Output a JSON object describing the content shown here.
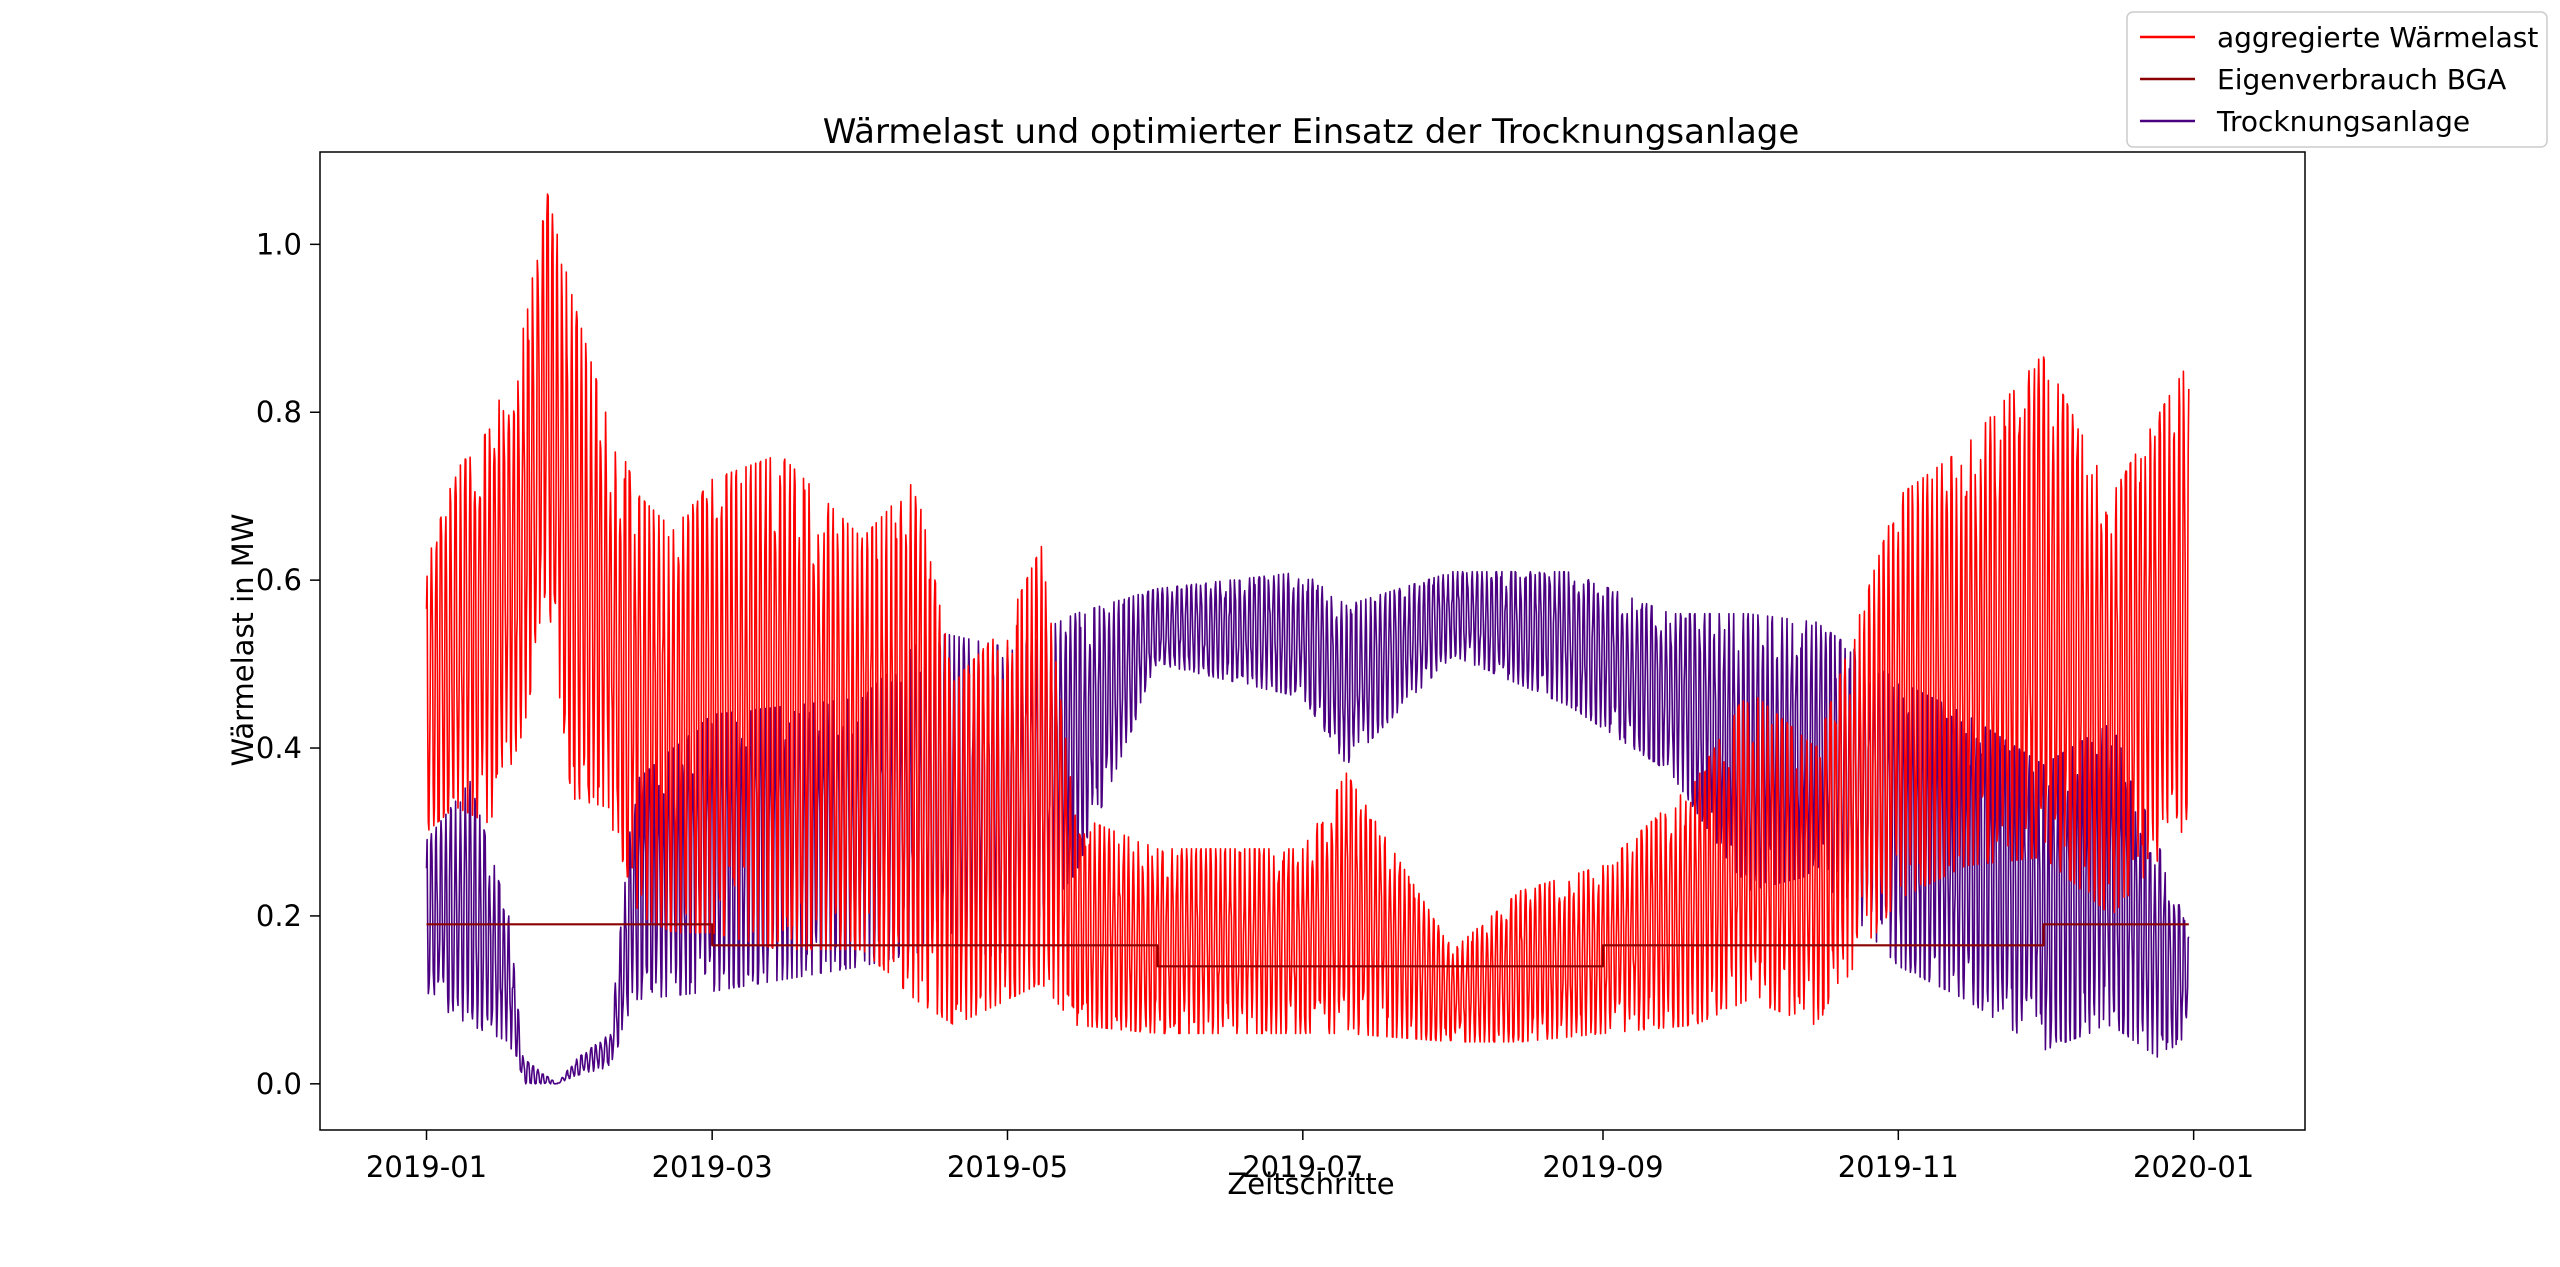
{
  "chart_data": {
    "type": "line",
    "title": "Wärmelast und optimierter Einsatz der Trocknungsanlage",
    "xlabel": "Zeitschritte",
    "ylabel": "Wärmelast in MW",
    "xlim": [
      "2018-12-10",
      "2020-01-24"
    ],
    "ylim": [
      -0.055,
      1.11
    ],
    "x_ticks": [
      "2019-01",
      "2019-03",
      "2019-05",
      "2019-07",
      "2019-09",
      "2019-11",
      "2020-01"
    ],
    "y_ticks": [
      "0.0",
      "0.2",
      "0.4",
      "0.6",
      "0.8",
      "1.0"
    ],
    "y_tick_values": [
      0.0,
      0.2,
      0.4,
      0.6,
      0.8,
      1.0
    ],
    "grid": false,
    "legend_position": "top-right (outside plot)",
    "series": [
      {
        "name": "aggregierte Wärmelast",
        "color": "#ff0000",
        "note": "hourly signal shown as daily envelope (min/max)",
        "envelope": [
          {
            "x": "2019-01-01",
            "min": 0.3,
            "max": 0.62
          },
          {
            "x": "2019-01-07",
            "min": 0.33,
            "max": 0.73
          },
          {
            "x": "2019-01-14",
            "min": 0.31,
            "max": 0.78
          },
          {
            "x": "2019-01-21",
            "min": 0.42,
            "max": 0.9
          },
          {
            "x": "2019-01-26",
            "min": 0.58,
            "max": 1.06
          },
          {
            "x": "2019-01-31",
            "min": 0.34,
            "max": 0.94
          },
          {
            "x": "2019-02-07",
            "min": 0.33,
            "max": 0.8
          },
          {
            "x": "2019-02-14",
            "min": 0.2,
            "max": 0.7
          },
          {
            "x": "2019-02-21",
            "min": 0.18,
            "max": 0.66
          },
          {
            "x": "2019-03-01",
            "min": 0.18,
            "max": 0.72
          },
          {
            "x": "2019-03-15",
            "min": 0.16,
            "max": 0.75
          },
          {
            "x": "2019-04-01",
            "min": 0.16,
            "max": 0.65
          },
          {
            "x": "2019-04-12",
            "min": 0.1,
            "max": 0.72
          },
          {
            "x": "2019-04-20",
            "min": 0.07,
            "max": 0.48
          },
          {
            "x": "2019-05-01",
            "min": 0.1,
            "max": 0.55
          },
          {
            "x": "2019-05-08",
            "min": 0.12,
            "max": 0.64
          },
          {
            "x": "2019-05-15",
            "min": 0.07,
            "max": 0.32
          },
          {
            "x": "2019-06-01",
            "min": 0.06,
            "max": 0.28
          },
          {
            "x": "2019-07-01",
            "min": 0.06,
            "max": 0.28
          },
          {
            "x": "2019-07-10",
            "min": 0.06,
            "max": 0.37
          },
          {
            "x": "2019-08-01",
            "min": 0.05,
            "max": 0.16
          },
          {
            "x": "2019-08-15",
            "min": 0.05,
            "max": 0.23
          },
          {
            "x": "2019-09-01",
            "min": 0.06,
            "max": 0.26
          },
          {
            "x": "2019-09-20",
            "min": 0.07,
            "max": 0.36
          },
          {
            "x": "2019-10-01",
            "min": 0.1,
            "max": 0.47
          },
          {
            "x": "2019-10-15",
            "min": 0.07,
            "max": 0.4
          },
          {
            "x": "2019-11-01",
            "min": 0.22,
            "max": 0.7
          },
          {
            "x": "2019-11-15",
            "min": 0.26,
            "max": 0.76
          },
          {
            "x": "2019-12-01",
            "min": 0.27,
            "max": 0.87
          },
          {
            "x": "2019-12-15",
            "min": 0.2,
            "max": 0.7
          },
          {
            "x": "2019-12-31",
            "min": 0.31,
            "max": 0.86
          }
        ]
      },
      {
        "name": "Eigenverbrauch BGA",
        "color": "#8b0000",
        "points": [
          {
            "x": "2019-01-01",
            "y": 0.19
          },
          {
            "x": "2019-03-01",
            "y": 0.19
          },
          {
            "x": "2019-03-01",
            "y": 0.165
          },
          {
            "x": "2019-06-01",
            "y": 0.165
          },
          {
            "x": "2019-06-01",
            "y": 0.14
          },
          {
            "x": "2019-09-01",
            "y": 0.14
          },
          {
            "x": "2019-09-01",
            "y": 0.165
          },
          {
            "x": "2019-12-01",
            "y": 0.165
          },
          {
            "x": "2019-12-01",
            "y": 0.19
          },
          {
            "x": "2019-12-31",
            "y": 0.19
          }
        ]
      },
      {
        "name": "Trocknungsanlage",
        "color": "#4b0082",
        "note": "hourly signal shown as daily envelope (min/max)",
        "envelope": [
          {
            "x": "2019-01-01",
            "min": 0.1,
            "max": 0.29
          },
          {
            "x": "2019-01-10",
            "min": 0.07,
            "max": 0.36
          },
          {
            "x": "2019-01-18",
            "min": 0.05,
            "max": 0.2
          },
          {
            "x": "2019-01-21",
            "min": 0.0,
            "max": 0.03
          },
          {
            "x": "2019-01-28",
            "min": 0.0,
            "max": 0.0
          },
          {
            "x": "2019-02-01",
            "min": 0.01,
            "max": 0.03
          },
          {
            "x": "2019-02-08",
            "min": 0.02,
            "max": 0.06
          },
          {
            "x": "2019-02-13",
            "min": 0.1,
            "max": 0.36
          },
          {
            "x": "2019-03-01",
            "min": 0.11,
            "max": 0.44
          },
          {
            "x": "2019-04-01",
            "min": 0.14,
            "max": 0.46
          },
          {
            "x": "2019-04-15",
            "min": 0.16,
            "max": 0.54
          },
          {
            "x": "2019-05-01",
            "min": 0.15,
            "max": 0.52
          },
          {
            "x": "2019-05-15",
            "min": 0.25,
            "max": 0.56
          },
          {
            "x": "2019-06-01",
            "min": 0.5,
            "max": 0.59
          },
          {
            "x": "2019-07-01",
            "min": 0.46,
            "max": 0.61
          },
          {
            "x": "2019-07-10",
            "min": 0.38,
            "max": 0.57
          },
          {
            "x": "2019-08-01",
            "min": 0.51,
            "max": 0.61
          },
          {
            "x": "2019-08-25",
            "min": 0.45,
            "max": 0.61
          },
          {
            "x": "2019-09-15",
            "min": 0.37,
            "max": 0.56
          },
          {
            "x": "2019-10-01",
            "min": 0.23,
            "max": 0.56
          },
          {
            "x": "2019-10-15",
            "min": 0.25,
            "max": 0.55
          },
          {
            "x": "2019-11-01",
            "min": 0.14,
            "max": 0.48
          },
          {
            "x": "2019-11-15",
            "min": 0.1,
            "max": 0.44
          },
          {
            "x": "2019-12-01",
            "min": 0.04,
            "max": 0.38
          },
          {
            "x": "2019-12-15",
            "min": 0.07,
            "max": 0.43
          },
          {
            "x": "2019-12-25",
            "min": 0.03,
            "max": 0.28
          },
          {
            "x": "2019-12-31",
            "min": 0.06,
            "max": 0.18
          }
        ]
      }
    ]
  }
}
